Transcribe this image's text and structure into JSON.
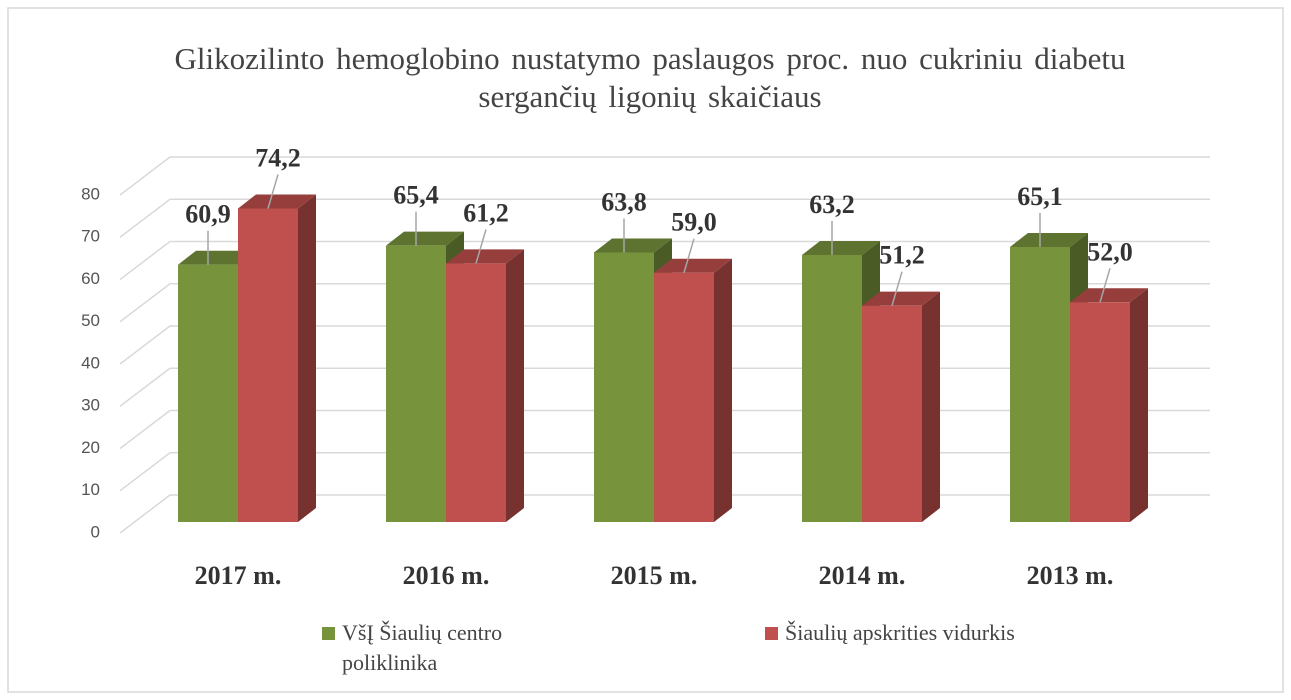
{
  "chart_data": {
    "type": "bar3d",
    "title": "Glikozilinto hemoglobino nustatymo paslaugos proc. nuo cukriniu diabetu sergančių ligonių skaičiaus",
    "categories": [
      "2017 m.",
      "2016 m.",
      "2015 m.",
      "2014 m.",
      "2013 m."
    ],
    "series": [
      {
        "name": "VšĮ Šiaulių centro poliklinika",
        "color": "#77933c",
        "values": [
          60.9,
          65.4,
          63.8,
          63.2,
          65.1
        ],
        "value_labels": [
          "60,9",
          "65,4",
          "63,8",
          "63,2",
          "65,1"
        ]
      },
      {
        "name": "Šiaulių apskrities vidurkis",
        "color": "#c0504d",
        "values": [
          74.2,
          61.2,
          59.0,
          51.2,
          52.0
        ],
        "value_labels": [
          "74,2",
          "61,2",
          "59,0",
          "51,2",
          "52,0"
        ]
      }
    ],
    "ylim": [
      0,
      80
    ],
    "yticks": [
      0,
      10,
      20,
      30,
      40,
      50,
      60,
      70,
      80
    ],
    "grid": true,
    "legend": "bottom"
  }
}
